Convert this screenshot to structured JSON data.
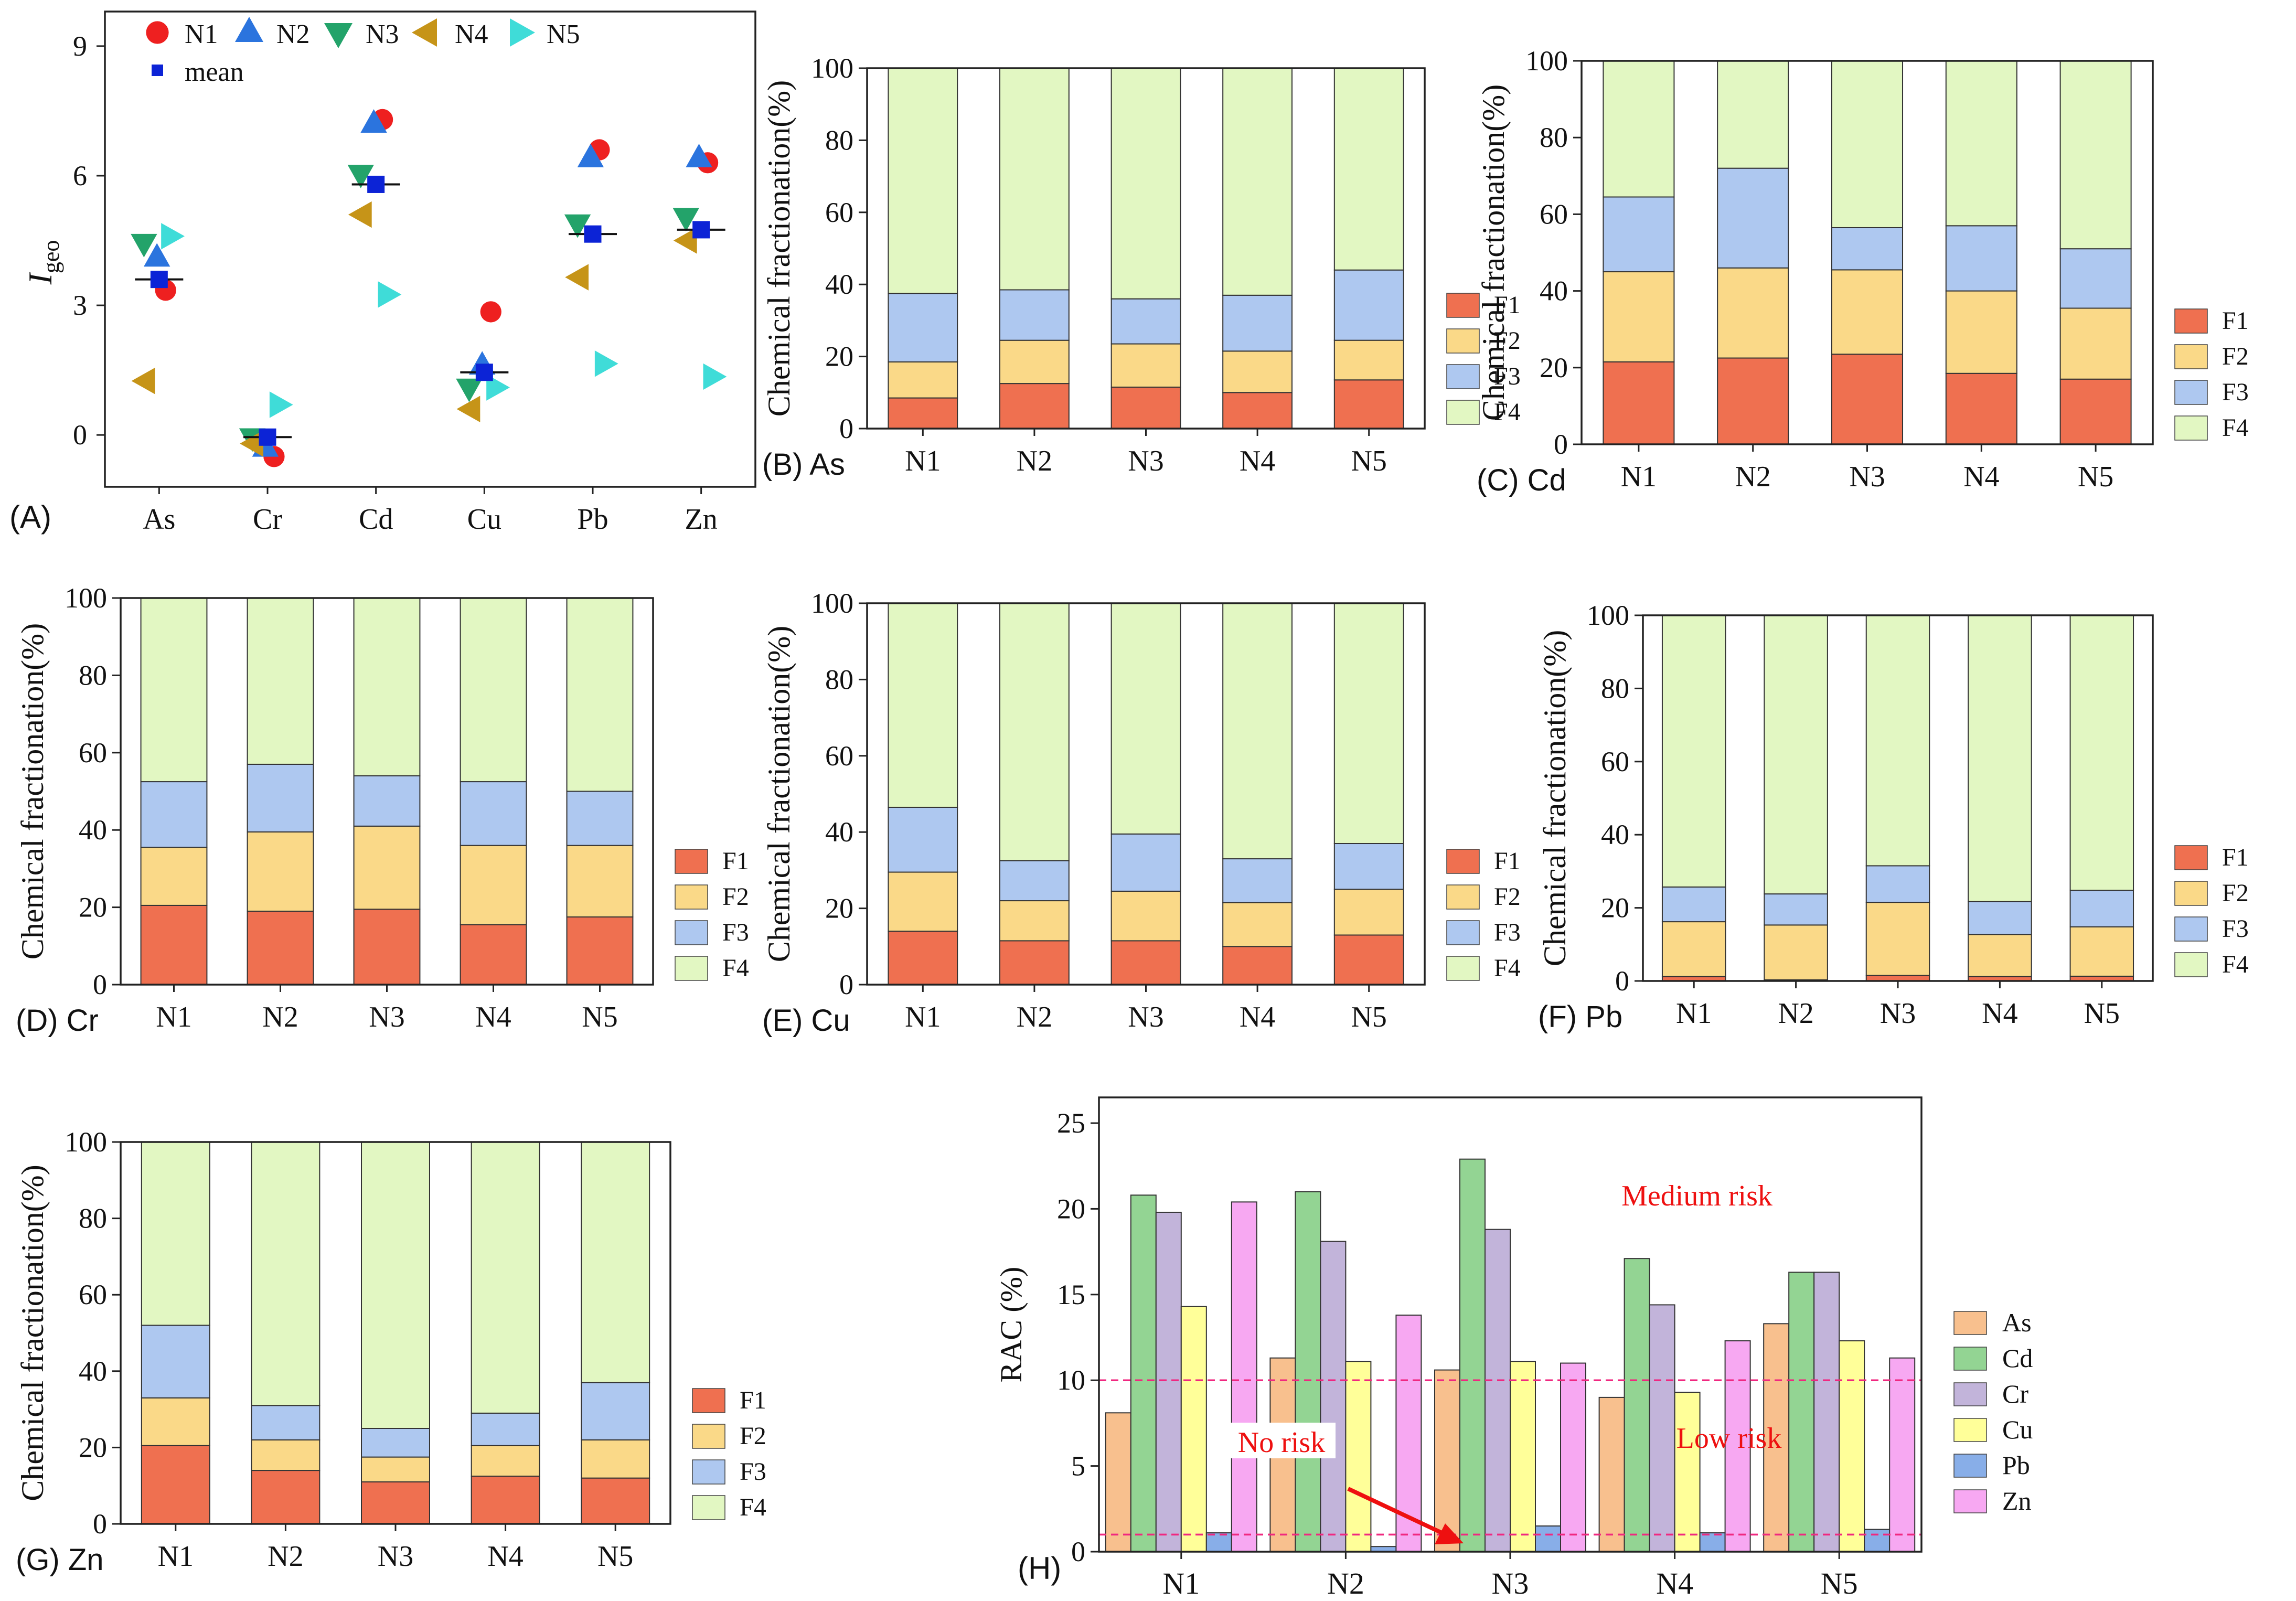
{
  "colors": {
    "F1": "#ef7050",
    "F2": "#fad988",
    "F3": "#aec8f0",
    "F4": "#e2f7c2",
    "N1": "#ee2020",
    "N2": "#2b74de",
    "N3": "#23a36a",
    "N4": "#c69418",
    "N5": "#3fdcd8",
    "mean": "#0c23d6",
    "As": "#f8c08e",
    "Cd": "#93d493",
    "Cr": "#c2b4da",
    "Cu": "#ffff99",
    "Pb": "#88aee8",
    "Zn": "#f7a8f2",
    "risk": "#ee1010",
    "line": "#f02880"
  },
  "chart_data": [
    {
      "id": "A",
      "type": "scatter",
      "panel_label": "(A)",
      "ylabel_main": "I",
      "ylabel_sub": "geo",
      "ylim": [
        -1.2,
        9.8
      ],
      "yticks": [
        0,
        3,
        6,
        9
      ],
      "categories": [
        "As",
        "Cr",
        "Cd",
        "Cu",
        "Pb",
        "Zn"
      ],
      "legend": [
        "N1",
        "N2",
        "N3",
        "N4",
        "N5",
        "mean"
      ],
      "series": [
        {
          "name": "N1",
          "marker": "circle",
          "values": [
            3.35,
            -0.5,
            7.3,
            2.85,
            6.6,
            6.3
          ]
        },
        {
          "name": "N2",
          "marker": "triangle-up",
          "values": [
            4.1,
            -0.3,
            7.2,
            1.6,
            6.4,
            6.4
          ]
        },
        {
          "name": "N3",
          "marker": "triangle-down",
          "values": [
            4.45,
            -0.05,
            6.05,
            1.1,
            4.9,
            5.05
          ]
        },
        {
          "name": "N4",
          "marker": "triangle-left",
          "values": [
            1.25,
            -0.2,
            5.1,
            0.6,
            3.65,
            4.5
          ]
        },
        {
          "name": "N5",
          "marker": "triangle-right",
          "values": [
            4.6,
            0.7,
            3.25,
            1.1,
            1.65,
            1.35
          ]
        },
        {
          "name": "mean",
          "marker": "square",
          "values": [
            3.6,
            -0.05,
            5.8,
            1.45,
            4.65,
            4.75
          ]
        }
      ]
    },
    {
      "id": "B",
      "type": "bar",
      "stacked": true,
      "panel_label": "(B) As",
      "ylabel": "Chemical fractionation(%)",
      "ylim": [
        0,
        100
      ],
      "yticks": [
        0,
        20,
        40,
        60,
        80,
        100
      ],
      "categories": [
        "N1",
        "N2",
        "N3",
        "N4",
        "N5"
      ],
      "series": [
        {
          "name": "F1",
          "values": [
            8.5,
            12.5,
            11.5,
            10,
            13.5
          ]
        },
        {
          "name": "F2",
          "values": [
            10,
            12,
            12,
            11.5,
            11
          ]
        },
        {
          "name": "F3",
          "values": [
            19,
            14,
            12.5,
            15.5,
            19.5
          ]
        },
        {
          "name": "F4",
          "values": [
            62.5,
            61.5,
            64,
            63,
            56
          ]
        }
      ]
    },
    {
      "id": "C",
      "type": "bar",
      "stacked": true,
      "panel_label": "(C) Cd",
      "ylabel": "Chemical fractionation(%)",
      "ylim": [
        0,
        100
      ],
      "yticks": [
        0,
        20,
        40,
        60,
        80,
        100
      ],
      "categories": [
        "N1",
        "N2",
        "N3",
        "N4",
        "N5"
      ],
      "series": [
        {
          "name": "F1",
          "values": [
            21.5,
            22.5,
            23.5,
            18.5,
            17
          ]
        },
        {
          "name": "F2",
          "values": [
            23.5,
            23.5,
            22,
            21.5,
            18.5
          ]
        },
        {
          "name": "F3",
          "values": [
            19.5,
            26,
            11,
            17,
            15.5
          ]
        },
        {
          "name": "F4",
          "values": [
            35.5,
            28,
            43.5,
            43,
            49
          ]
        }
      ]
    },
    {
      "id": "D",
      "type": "bar",
      "stacked": true,
      "panel_label": "(D) Cr",
      "ylabel": "Chemical fractionation(%)",
      "ylim": [
        0,
        100
      ],
      "yticks": [
        0,
        20,
        40,
        60,
        80,
        100
      ],
      "categories": [
        "N1",
        "N2",
        "N3",
        "N4",
        "N5"
      ],
      "series": [
        {
          "name": "F1",
          "values": [
            20.5,
            19,
            19.5,
            15.5,
            17.5
          ]
        },
        {
          "name": "F2",
          "values": [
            15,
            20.5,
            21.5,
            20.5,
            18.5
          ]
        },
        {
          "name": "F3",
          "values": [
            17,
            17.5,
            13,
            16.5,
            14
          ]
        },
        {
          "name": "F4",
          "values": [
            47.5,
            43,
            46,
            47.5,
            50
          ]
        }
      ]
    },
    {
      "id": "E",
      "type": "bar",
      "stacked": true,
      "panel_label": "(E) Cu",
      "ylabel": "Chemical fractionation(%)",
      "ylim": [
        0,
        100
      ],
      "yticks": [
        0,
        20,
        40,
        60,
        80,
        100
      ],
      "categories": [
        "N1",
        "N2",
        "N3",
        "N4",
        "N5"
      ],
      "series": [
        {
          "name": "F1",
          "values": [
            14,
            11.5,
            11.5,
            10,
            13
          ]
        },
        {
          "name": "F2",
          "values": [
            15.5,
            10.5,
            13,
            11.5,
            12
          ]
        },
        {
          "name": "F3",
          "values": [
            17,
            10.5,
            15,
            11.5,
            12
          ]
        },
        {
          "name": "F4",
          "values": [
            53.5,
            67.5,
            60.5,
            67,
            63
          ]
        }
      ]
    },
    {
      "id": "F",
      "type": "bar",
      "stacked": true,
      "panel_label": "(F) Pb",
      "ylabel": "Chemical fractionation(%)",
      "ylim": [
        0,
        100
      ],
      "yticks": [
        0,
        20,
        40,
        60,
        80,
        100
      ],
      "categories": [
        "N1",
        "N2",
        "N3",
        "N4",
        "N5"
      ],
      "series": [
        {
          "name": "F1",
          "values": [
            1.2,
            0.3,
            1.5,
            1.2,
            1.3
          ]
        },
        {
          "name": "F2",
          "values": [
            15,
            15,
            20,
            11.5,
            13.5
          ]
        },
        {
          "name": "F3",
          "values": [
            9.5,
            8.5,
            10,
            9,
            10
          ]
        },
        {
          "name": "F4",
          "values": [
            74.3,
            76.2,
            68.5,
            78.3,
            75.2
          ]
        }
      ]
    },
    {
      "id": "G",
      "type": "bar",
      "stacked": true,
      "panel_label": "(G) Zn",
      "ylabel": "Chemical fractionation(%)",
      "ylim": [
        0,
        100
      ],
      "yticks": [
        0,
        20,
        40,
        60,
        80,
        100
      ],
      "categories": [
        "N1",
        "N2",
        "N3",
        "N4",
        "N5"
      ],
      "series": [
        {
          "name": "F1",
          "values": [
            20.5,
            14,
            11,
            12.5,
            12
          ]
        },
        {
          "name": "F2",
          "values": [
            12.5,
            8,
            6.5,
            8,
            10
          ]
        },
        {
          "name": "F3",
          "values": [
            19,
            9,
            7.5,
            8.5,
            15
          ]
        },
        {
          "name": "F4",
          "values": [
            48,
            69,
            75,
            71,
            63
          ]
        }
      ]
    },
    {
      "id": "H",
      "type": "bar",
      "panel_label": "(H)",
      "ylabel": "RAC (%)",
      "ylim": [
        0,
        26.5
      ],
      "yticks": [
        0,
        5,
        10,
        15,
        20,
        25
      ],
      "categories": [
        "N1",
        "N2",
        "N3",
        "N4",
        "N5"
      ],
      "series": [
        {
          "name": "As",
          "values": [
            8.1,
            11.3,
            10.6,
            9.0,
            13.3
          ]
        },
        {
          "name": "Cd",
          "values": [
            20.8,
            21.0,
            22.9,
            17.1,
            16.3
          ]
        },
        {
          "name": "Cr",
          "values": [
            19.8,
            18.1,
            18.8,
            14.4,
            16.3
          ]
        },
        {
          "name": "Cu",
          "values": [
            14.3,
            11.1,
            11.1,
            9.3,
            12.3
          ]
        },
        {
          "name": "Pb",
          "values": [
            1.1,
            0.3,
            1.5,
            1.1,
            1.3
          ]
        },
        {
          "name": "Zn",
          "values": [
            20.4,
            13.8,
            11.0,
            12.3,
            11.3
          ]
        }
      ],
      "thresholds": [
        1,
        10
      ],
      "annotations": {
        "medium": "Medium risk",
        "low": "Low risk",
        "none": "No risk"
      }
    }
  ]
}
